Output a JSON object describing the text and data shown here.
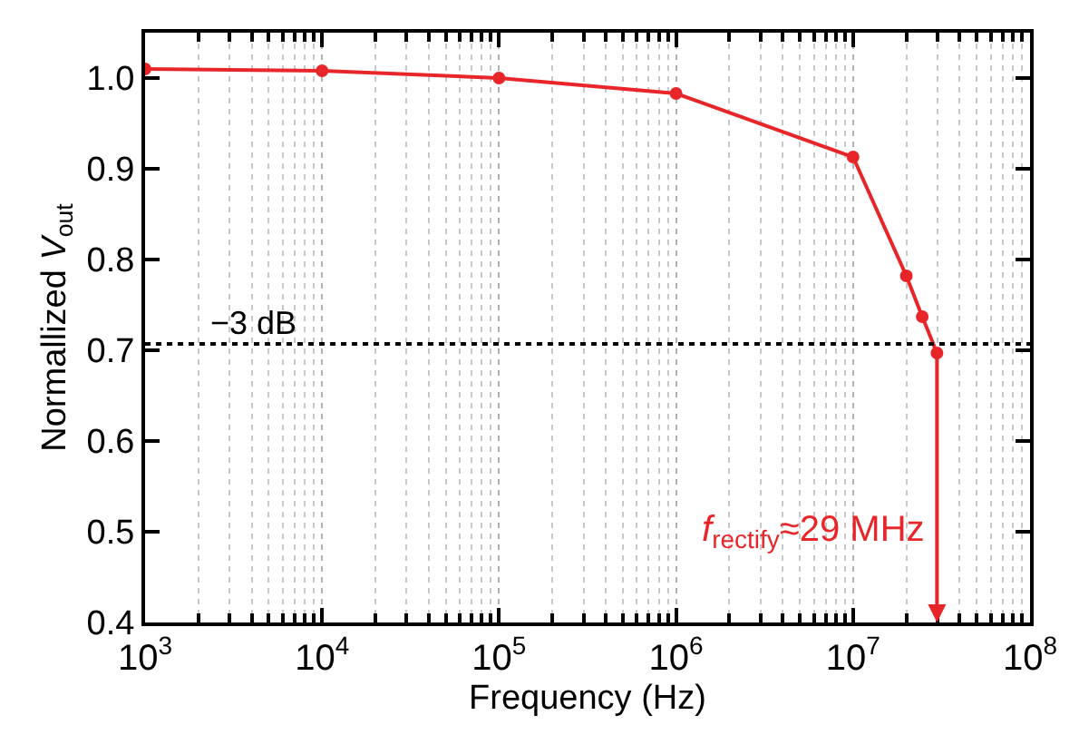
{
  "chart_data": {
    "type": "line",
    "xlabel": "Frequency (Hz)",
    "ylabel": "Normallized V$_{out}$",
    "x": [
      1000,
      10000,
      100000,
      1000000,
      10000000,
      20000000,
      24600000,
      29800000
    ],
    "series": [
      {
        "color": "#e8262a",
        "values": [
          1.01,
          1.008,
          1.0,
          0.983,
          0.913,
          0.782,
          0.737,
          0.697
        ]
      }
    ],
    "log": "x",
    "xlim": [
      1000,
      100000000
    ],
    "ylim": [
      0.4,
      1.05
    ],
    "xticks": [
      {
        "value": 1000,
        "label": "10$^{3}$"
      },
      {
        "value": 10000,
        "label": "10$^{4}$"
      },
      {
        "value": 100000,
        "label": "10$^{5}$"
      },
      {
        "value": 1000000,
        "label": "10$^{6}$"
      },
      {
        "value": 10000000,
        "label": "10$^{7}$"
      },
      {
        "value": 100000000,
        "label": "10$^{8}$"
      }
    ],
    "yticks": [
      {
        "value": 0.4,
        "label": "0.4"
      },
      {
        "value": 0.5,
        "label": "0.5"
      },
      {
        "value": 0.6,
        "label": "0.6"
      },
      {
        "value": 0.7,
        "label": "0.7"
      },
      {
        "value": 0.8,
        "label": "0.8"
      },
      {
        "value": 0.9,
        "label": "0.9"
      },
      {
        "value": 1.0,
        "label": "1.0"
      }
    ],
    "ref_lines": [
      {
        "axis": "y",
        "value": 0.707,
        "label": "−3 dB",
        "color": "#000000",
        "line_style": "dotted"
      }
    ],
    "annotations": [
      "f$_{rectify}$≈29 MHz"
    ],
    "grid": "x",
    "marker": "circle",
    "line_style": "solid"
  }
}
